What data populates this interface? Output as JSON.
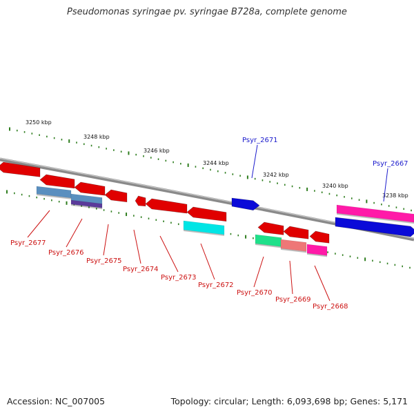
{
  "title": "Pseudomonas syringae pv. syringae B728a, complete genome",
  "footer": {
    "accession": "Accession: NC_007005",
    "summary": "Topology: circular; Length: 6,093,698 bp; Genes: 5,171"
  },
  "scale_labels": [
    "3250 kbp",
    "3248 kbp",
    "3246 kbp",
    "3244 kbp",
    "3242 kbp",
    "3240 kbp",
    "3238 kbp"
  ],
  "colors": {
    "backbone": "#8a8a8a",
    "tick": "#2e7d1e",
    "label_top": "#1a1acc",
    "label_bottom": "#cc1111"
  },
  "genes_top": [
    {
      "name": "Psyr_2671",
      "color": "#0a0ad8"
    },
    {
      "name": "Psyr_2667",
      "color": "#0a0ad8"
    }
  ],
  "genes_bottom": [
    {
      "name": "Psyr_2677",
      "color": "#e00000"
    },
    {
      "name": "Psyr_2676",
      "color": "#e00000"
    },
    {
      "name": "Psyr_2675",
      "color": "#e00000"
    },
    {
      "name": "Psyr_2674",
      "color": "#e00000"
    },
    {
      "name": "Psyr_2673",
      "color": "#e00000"
    },
    {
      "name": "Psyr_2672",
      "color": "#e00000"
    },
    {
      "name": "Psyr_2670",
      "color": "#e00000"
    },
    {
      "name": "Psyr_2669",
      "color": "#e00000"
    },
    {
      "name": "Psyr_2668",
      "color": "#e00000"
    }
  ],
  "features": [
    {
      "name": "Psyr_2677",
      "color": "#5a8fbf"
    },
    {
      "name": "Psyr_2676",
      "color": "#5a3a9a"
    },
    {
      "name": "Psyr_2672",
      "color": "#00e5e5"
    },
    {
      "name": "Psyr_2670",
      "color": "#1fe08a"
    },
    {
      "name": "Psyr_2669",
      "color": "#ee7777"
    },
    {
      "name": "Psyr_2668",
      "color": "#ff1aa8"
    },
    {
      "name": "Psyr_2667",
      "color": "#ff1aa8"
    }
  ]
}
